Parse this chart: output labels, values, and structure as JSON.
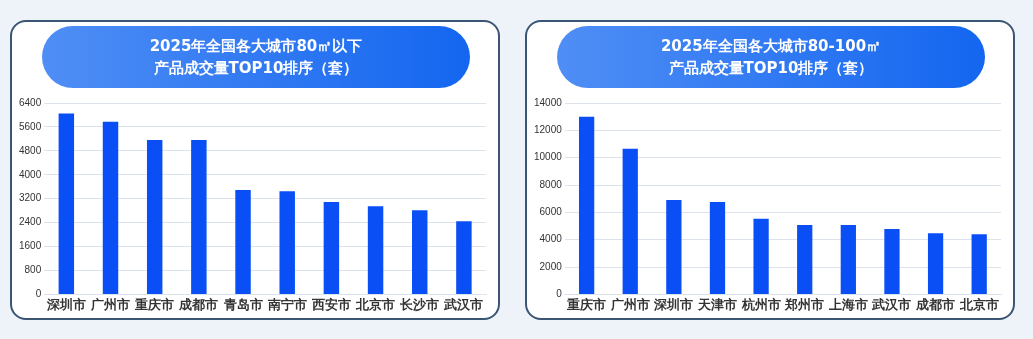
{
  "chart_data": [
    {
      "type": "bar",
      "title": "2025年全国各大城市80㎡以下产品成交量TOP10排序（套）",
      "categories": [
        "深圳市",
        "广州市",
        "重庆市",
        "成都市",
        "青岛市",
        "南宁市",
        "西安市",
        "北京市",
        "长沙市",
        "武汉市"
      ],
      "values": [
        6050,
        5770,
        5160,
        5160,
        3490,
        3450,
        3090,
        2950,
        2810,
        2450
      ],
      "color": "#0a4ff5",
      "ylim": [
        0,
        6400
      ],
      "yticks": [
        0,
        800,
        1600,
        2400,
        3200,
        4000,
        4800,
        5600,
        6400
      ],
      "grid": "y",
      "legend": false
    },
    {
      "type": "bar",
      "title": "2025年全国各大城市80-100㎡产品成交量TOP10排序（套）",
      "categories": [
        "重庆市",
        "广州市",
        "深圳市",
        "天津市",
        "杭州市",
        "郑州市",
        "上海市",
        "武汉市",
        "成都市",
        "北京市"
      ],
      "values": [
        13000,
        10650,
        6910,
        6760,
        5540,
        5080,
        5080,
        4780,
        4470,
        4400
      ],
      "color": "#0a4ff5",
      "ylim": [
        0,
        14000
      ],
      "yticks": [
        0,
        2000,
        4000,
        6000,
        8000,
        10000,
        12000,
        14000
      ],
      "grid": "y",
      "legend": false
    }
  ]
}
